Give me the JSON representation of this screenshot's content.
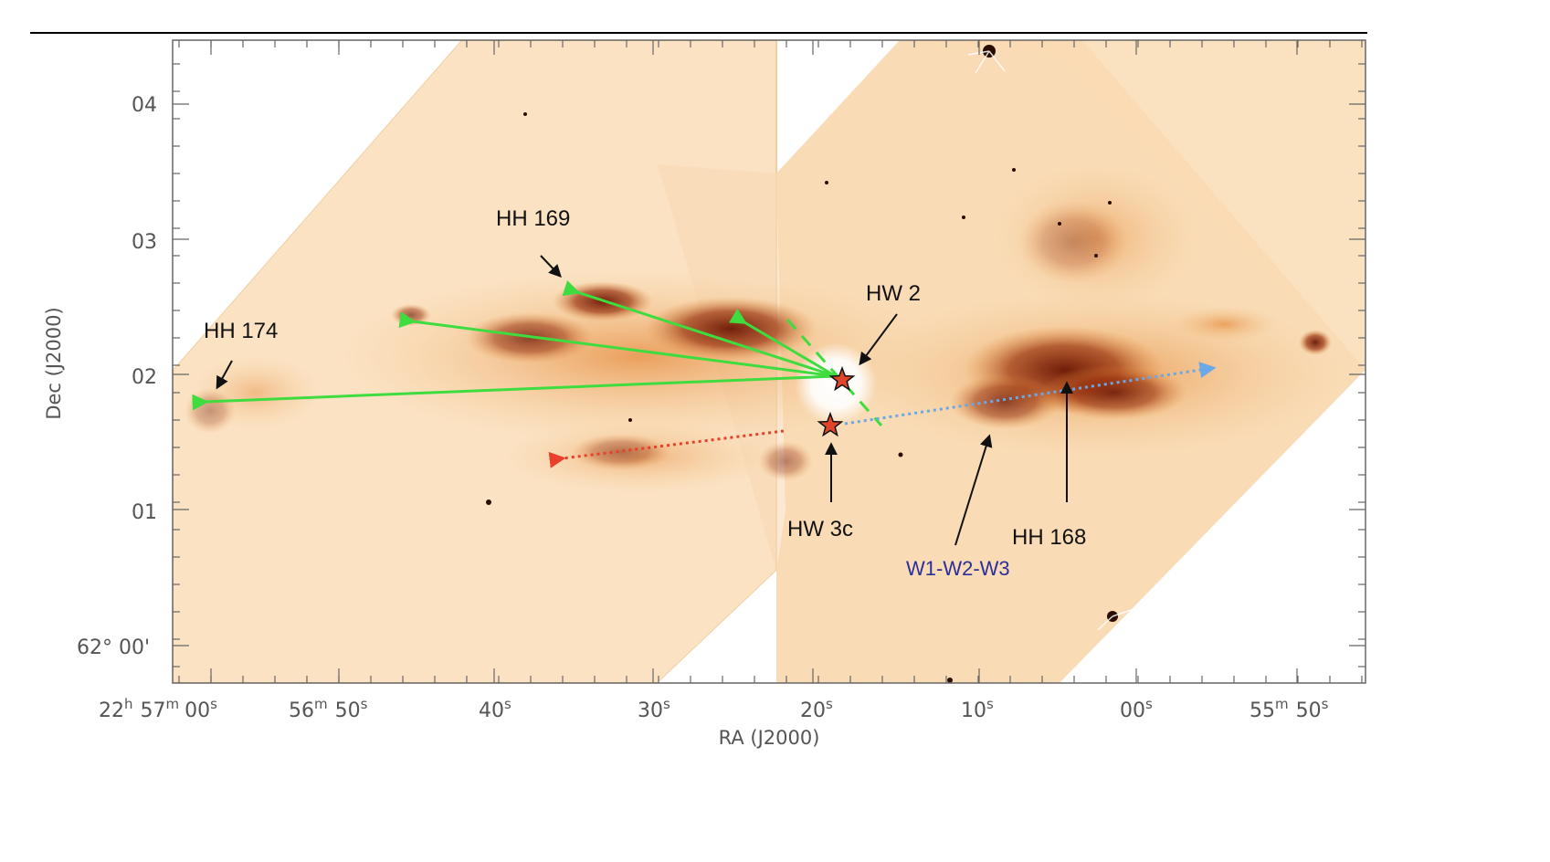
{
  "axes": {
    "xlabel": "RA (J2000)",
    "ylabel": "Dec (J2000)",
    "x_ticks": [
      {
        "main": "22",
        "h": "h",
        "mid": "57",
        "m": "m",
        "rest": "00",
        "s": "s"
      },
      {
        "main": "56",
        "m": "m",
        "rest": "50",
        "s": "s"
      },
      {
        "main": "40",
        "s": "s"
      },
      {
        "main": "30",
        "s": "s"
      },
      {
        "main": "20",
        "s": "s"
      },
      {
        "main": "10",
        "s": "s"
      },
      {
        "main": "00",
        "s": "s"
      },
      {
        "main": "55",
        "m": "m",
        "rest": "50",
        "s": "s"
      }
    ],
    "y_ticks": [
      "04",
      "03",
      "02",
      "01",
      "62° 00'"
    ]
  },
  "labels": {
    "hh169": "HH 169",
    "hh174": "HH 174",
    "hw2": "HW 2",
    "hw3c": "HW 3c",
    "hh168": "HH 168",
    "w123": "W1-W2-W3"
  },
  "colors": {
    "background_glow": "#fbe3c3",
    "nebula_mid": "#e99a4a",
    "nebula_dark": "#7a1f06",
    "green_arrow": "#3fdc3f",
    "red_arrow": "#e8402a",
    "blue_arrow": "#6aa8e8",
    "blue_label": "#2a2f9a",
    "star_fill": "#e0452a"
  }
}
